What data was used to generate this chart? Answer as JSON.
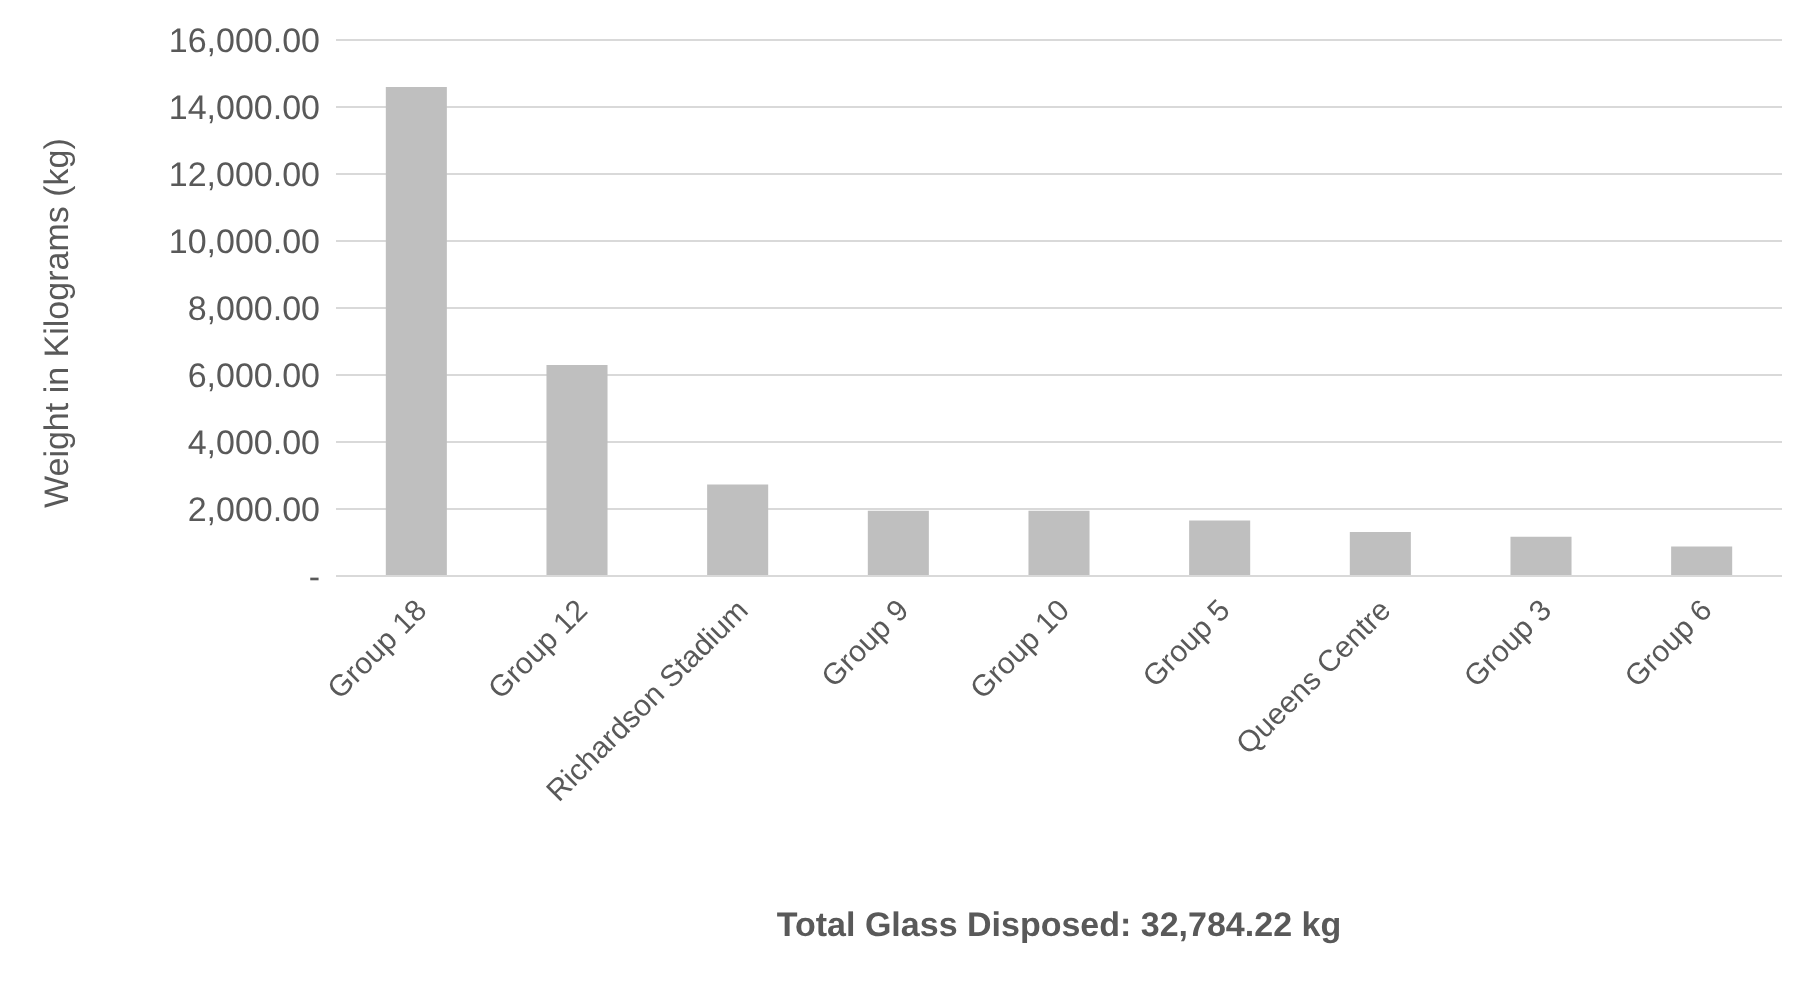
{
  "chart_data": {
    "type": "bar",
    "xlabel": "Total Glass Disposed: 32,784.22 kg",
    "ylabel": "Weight in Kilograms (kg)",
    "categories": [
      "Group 18",
      "Group 12",
      "Richardson Stadium",
      "Group 9",
      "Group 10",
      "Group 5",
      "Queens Centre",
      "Group 3",
      "Group 6"
    ],
    "values": [
      14600,
      6300,
      2730,
      1950,
      1950,
      1660,
      1310,
      1170,
      880
    ],
    "color": "#bfbfbf",
    "ylim": [
      0,
      16000
    ],
    "yticks": [
      {
        "value": 0,
        "label": "-"
      },
      {
        "value": 2000,
        "label": "2,000.00"
      },
      {
        "value": 4000,
        "label": "4,000.00"
      },
      {
        "value": 6000,
        "label": "6,000.00"
      },
      {
        "value": 8000,
        "label": "8,000.00"
      },
      {
        "value": 10000,
        "label": "10,000.00"
      },
      {
        "value": 12000,
        "label": "12,000.00"
      },
      {
        "value": 14000,
        "label": "14,000.00"
      },
      {
        "value": 16000,
        "label": "16,000.00"
      }
    ],
    "grid": "y"
  }
}
